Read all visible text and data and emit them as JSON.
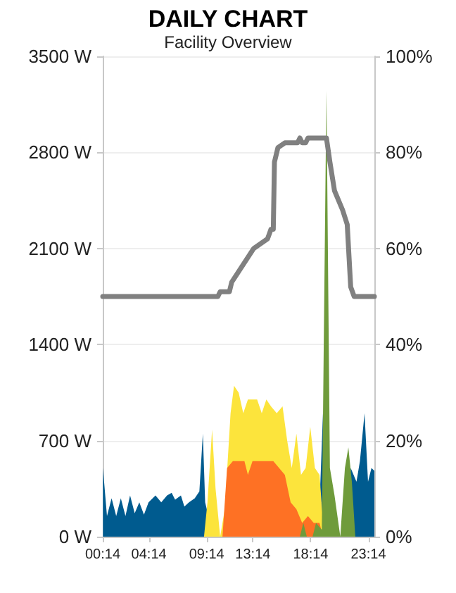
{
  "chart_data": {
    "type": "area",
    "title": "DAILY CHART",
    "subtitle": "Facility Overview",
    "xlim": [
      0.2333,
      23.75
    ],
    "xticks": [
      {
        "value": 0.2333,
        "label": "00:14"
      },
      {
        "value": 4.2333,
        "label": "04:14"
      },
      {
        "value": 9.2333,
        "label": "09:14"
      },
      {
        "value": 13.2333,
        "label": "13:14"
      },
      {
        "value": 18.2333,
        "label": "18:14"
      },
      {
        "value": 23.2333,
        "label": "23:14"
      }
    ],
    "ylim": [
      0,
      3500
    ],
    "yticks": [
      {
        "value": 0,
        "label": "0 W"
      },
      {
        "value": 700,
        "label": "700 W"
      },
      {
        "value": 1400,
        "label": "1400 W"
      },
      {
        "value": 2100,
        "label": "2100 W"
      },
      {
        "value": 2800,
        "label": "2800 W"
      },
      {
        "value": 3500,
        "label": "3500 W"
      }
    ],
    "y2lim": [
      0,
      100
    ],
    "y2ticks": [
      {
        "value": 0,
        "label": "0%"
      },
      {
        "value": 20,
        "label": "20%"
      },
      {
        "value": 40,
        "label": "40%"
      },
      {
        "value": 60,
        "label": "60%"
      },
      {
        "value": 80,
        "label": "80%"
      },
      {
        "value": 100,
        "label": "100%"
      }
    ],
    "grid": "y",
    "marker": "none",
    "line_style": "solid",
    "series": [
      {
        "color": "#005b8f",
        "x": [
          0.25,
          0.6,
          1.0,
          1.4,
          1.8,
          2.2,
          2.6,
          3.0,
          3.4,
          3.8,
          4.2,
          4.8,
          5.3,
          5.8,
          6.2,
          6.5,
          7.0,
          7.3,
          7.7,
          8.2,
          8.6,
          8.9,
          9.1,
          9.8,
          18.9,
          19.3,
          20.4,
          21.4,
          21.7,
          22.2,
          22.5,
          22.9,
          23.2,
          23.5,
          23.75
        ],
        "values": [
          500,
          150,
          280,
          150,
          280,
          150,
          300,
          170,
          250,
          160,
          250,
          300,
          250,
          300,
          320,
          270,
          300,
          220,
          250,
          280,
          330,
          750,
          250,
          0,
          0,
          900,
          0,
          0,
          500,
          400,
          550,
          900,
          400,
          500,
          480
        ]
      },
      {
        "color": "#fce43c",
        "x": [
          9.0,
          9.3,
          9.7,
          10.0,
          10.4,
          10.8,
          11.3,
          11.6,
          12.0,
          12.4,
          12.8,
          13.2,
          13.6,
          14.0,
          14.4,
          14.8,
          15.3,
          15.8,
          16.2,
          16.6,
          17.0,
          17.4,
          17.8,
          18.2,
          18.6,
          19.0,
          19.4
        ],
        "values": [
          0,
          250,
          780,
          350,
          0,
          200,
          900,
          1100,
          1050,
          900,
          1000,
          1000,
          1000,
          900,
          1000,
          950,
          900,
          950,
          700,
          500,
          750,
          450,
          500,
          800,
          500,
          450,
          0
        ]
      },
      {
        "color": "#fe7124",
        "x": [
          10.6,
          11.0,
          11.5,
          12.5,
          12.8,
          13.2,
          14.0,
          14.4,
          15.0,
          15.5,
          16.0,
          16.5,
          17.0,
          17.5,
          18.0,
          18.5,
          19.0,
          19.3
        ],
        "values": [
          0,
          500,
          550,
          550,
          450,
          550,
          550,
          550,
          550,
          500,
          450,
          250,
          200,
          100,
          150,
          100,
          100,
          0
        ]
      },
      {
        "color": "#6f9b3b",
        "x": [
          17.3,
          17.6,
          17.9,
          18.4,
          18.7,
          19.2,
          19.6,
          19.9,
          20.3,
          20.8,
          21.2,
          21.5,
          21.8,
          22.1
        ],
        "values": [
          0,
          100,
          0,
          0,
          100,
          50,
          3250,
          500,
          300,
          0,
          500,
          650,
          400,
          0
        ]
      },
      {
        "type": "line",
        "axis": "y2",
        "color": "#808080",
        "x": [
          0.2333,
          10.2,
          10.4,
          11.2,
          11.4,
          13.3,
          14.5,
          14.8,
          15.0,
          15.1,
          15.4,
          16.0,
          17.1,
          17.3,
          17.5,
          17.8,
          18.0,
          19.6,
          19.9,
          20.3,
          21.0,
          21.4,
          21.7,
          22.0,
          23.75
        ],
        "values": [
          50,
          50,
          51,
          51,
          53,
          60,
          62,
          64,
          64,
          78,
          81,
          82,
          82,
          83,
          82,
          82,
          83,
          83,
          78,
          72,
          68,
          65,
          52,
          50,
          50
        ]
      }
    ]
  }
}
